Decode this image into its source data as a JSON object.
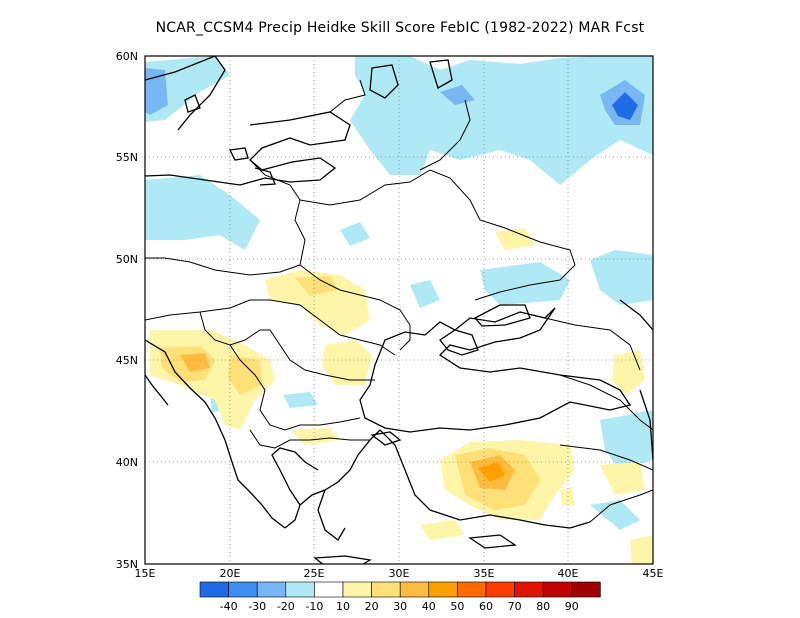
{
  "title": "NCAR_CCSM4 Precip Heidke Skill Score FebIC (1982-2022) MAR Fcst",
  "map": {
    "lon_range": [
      15,
      45
    ],
    "lat_range": [
      35,
      60
    ],
    "lon_ticks": [
      "15E",
      "20E",
      "25E",
      "30E",
      "35E",
      "40E",
      "45E"
    ],
    "lat_ticks": [
      "35N",
      "40N",
      "45N",
      "50N",
      "55N",
      "60N"
    ],
    "grid": "dotted",
    "colors": {
      "neg40": "#1e6be6",
      "neg30": "#3d8ef0",
      "neg20": "#79b6f5",
      "neg10": "#aee9f5",
      "neutral": "#ffffff",
      "pos10": "#fff5a8",
      "pos20": "#ffdf78",
      "pos30": "#ffbb40",
      "pos40": "#ffa000",
      "coast": "#000000"
    }
  },
  "legend": {
    "labels": [
      "-40",
      "-30",
      "-20",
      "-10",
      "10",
      "20",
      "30",
      "40",
      "50",
      "60",
      "70",
      "80",
      "90"
    ],
    "colors": [
      "#1e6be6",
      "#3d8ef0",
      "#79b6f5",
      "#aee9f5",
      "#ffffff",
      "#fff5a8",
      "#ffdf78",
      "#ffbb40",
      "#ffa000",
      "#ff6a00",
      "#ff3c00",
      "#e01400",
      "#c00000",
      "#a00000"
    ]
  }
}
